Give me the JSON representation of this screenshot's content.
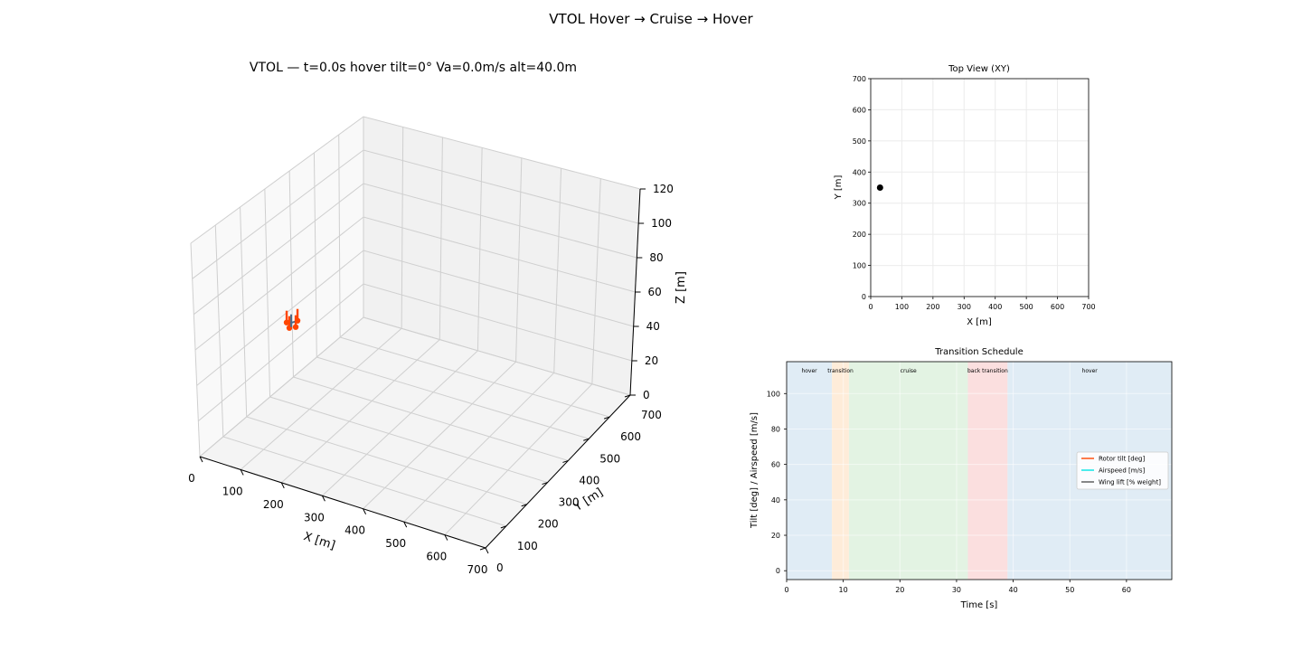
{
  "figure": {
    "title": "VTOL Hover → Cruise → Hover"
  },
  "chart_data": [
    {
      "type": "scatter",
      "panel": "3d-view",
      "title": "VTOL — t=0.0s  hover  tilt=0°  Va=0.0m/s  alt=40.0m",
      "xlabel": "X [m]",
      "ylabel": "Y [m]",
      "zlabel": "Z [m]",
      "xlim": [
        0,
        700
      ],
      "ylim": [
        0,
        700
      ],
      "zlim": [
        0,
        120
      ],
      "xticks": [
        "0",
        "100",
        "200",
        "300",
        "400",
        "500",
        "600",
        "700"
      ],
      "yticks": [
        "0",
        "100",
        "200",
        "300",
        "400",
        "500",
        "600",
        "700"
      ],
      "zticks": [
        "0",
        "20",
        "40",
        "60",
        "80",
        "100",
        "120"
      ],
      "vehicle": {
        "x": 30,
        "y": 350,
        "z": 40,
        "color": "#ff4500",
        "arm_color": "#4a6b8a"
      }
    },
    {
      "type": "scatter",
      "panel": "top-view",
      "title": "Top View (XY)",
      "xlabel": "X [m]",
      "ylabel": "Y [m]",
      "xlim": [
        0,
        700
      ],
      "ylim": [
        0,
        700
      ],
      "xticks": [
        0,
        100,
        200,
        300,
        400,
        500,
        600,
        700
      ],
      "yticks": [
        0,
        100,
        200,
        300,
        400,
        500,
        600,
        700
      ],
      "grid": true,
      "points": [
        {
          "x": 30,
          "y": 350
        }
      ],
      "point_color": "#000000"
    },
    {
      "type": "line",
      "panel": "transition-schedule",
      "title": "Transition Schedule",
      "xlabel": "Time [s]",
      "ylabel": "Tilt [deg] / Airspeed [m/s]",
      "xlim": [
        0,
        68
      ],
      "ylim": [
        -5,
        118
      ],
      "xticks": [
        0,
        10,
        20,
        30,
        40,
        50,
        60
      ],
      "yticks": [
        0,
        20,
        40,
        60,
        80,
        100
      ],
      "grid": true,
      "phases": [
        {
          "label": "hover",
          "start": 0,
          "end": 8,
          "color": "#d6e6f2",
          "label_color": "#1f4e79"
        },
        {
          "label": "transition",
          "start": 8,
          "end": 11,
          "color": "#fde6cc",
          "label_color": "#ff6a00"
        },
        {
          "label": "cruise",
          "start": 11,
          "end": 32,
          "color": "#d9efd9",
          "label_color": "#2e6b2e"
        },
        {
          "label": "back transition",
          "start": 32,
          "end": 39,
          "color": "#fad4d4",
          "label_color": "#d62020"
        },
        {
          "label": "hover",
          "start": 39,
          "end": 68,
          "color": "#d6e6f2",
          "label_color": "#1f4e79"
        }
      ],
      "legend_position": "center-right",
      "series": [
        {
          "name": "Rotor tilt [deg]",
          "color": "#ff4500",
          "x": [],
          "y": []
        },
        {
          "name": "Airspeed [m/s]",
          "color": "#00e5e5",
          "x": [],
          "y": []
        },
        {
          "name": "Wing lift [% weight]",
          "color": "#555555",
          "x": [],
          "y": []
        }
      ]
    }
  ]
}
